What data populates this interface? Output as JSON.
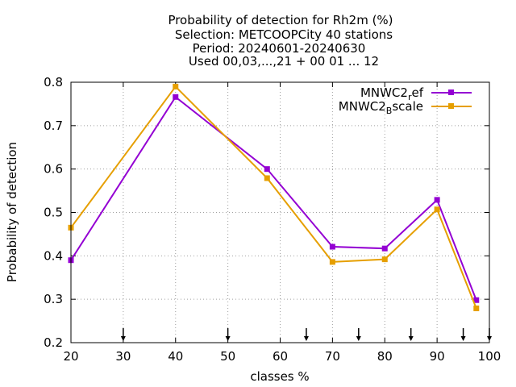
{
  "chart_data": {
    "type": "line",
    "title_lines": [
      "Probability of detection  for Rh2m (%)",
      "Selection: METCOOPCity     40 stations",
      "Period: 20240601-20240630",
      "Used 00,03,...,21 + 00 01 ... 12"
    ],
    "xlabel": "classes %",
    "ylabel": "Probability of detection",
    "xlim": [
      20,
      100
    ],
    "ylim": [
      0.2,
      0.8
    ],
    "xticks": [
      20,
      30,
      40,
      50,
      60,
      70,
      80,
      90,
      100
    ],
    "yticks": [
      0.2,
      0.3,
      0.4,
      0.5,
      0.6,
      0.7,
      0.8
    ],
    "ytick_labels": [
      "0.2",
      "0.3",
      "0.4",
      "0.5",
      "0.6",
      "0.7",
      "0.8"
    ],
    "grid": true,
    "legend_position": "top-right",
    "series": [
      {
        "name": "MNWC2_ref",
        "label_main": "MNWC2",
        "label_sub": "r",
        "label_tail": "ef",
        "color": "#9400d3",
        "x": [
          20,
          40,
          57.5,
          70,
          80,
          90,
          97.5
        ],
        "y": [
          0.39,
          0.766,
          0.6,
          0.421,
          0.417,
          0.529,
          0.298
        ]
      },
      {
        "name": "MNWC2_Bscale",
        "label_main": "MNWC2",
        "label_sub": "B",
        "label_tail": "scale",
        "color": "#e69f00",
        "x": [
          20,
          40,
          57.5,
          70,
          80,
          90,
          97.5
        ],
        "y": [
          0.465,
          0.79,
          0.579,
          0.386,
          0.392,
          0.507,
          0.279
        ]
      }
    ],
    "arrow_markers_x": [
      30,
      50,
      65,
      75,
      85,
      95,
      100
    ]
  }
}
